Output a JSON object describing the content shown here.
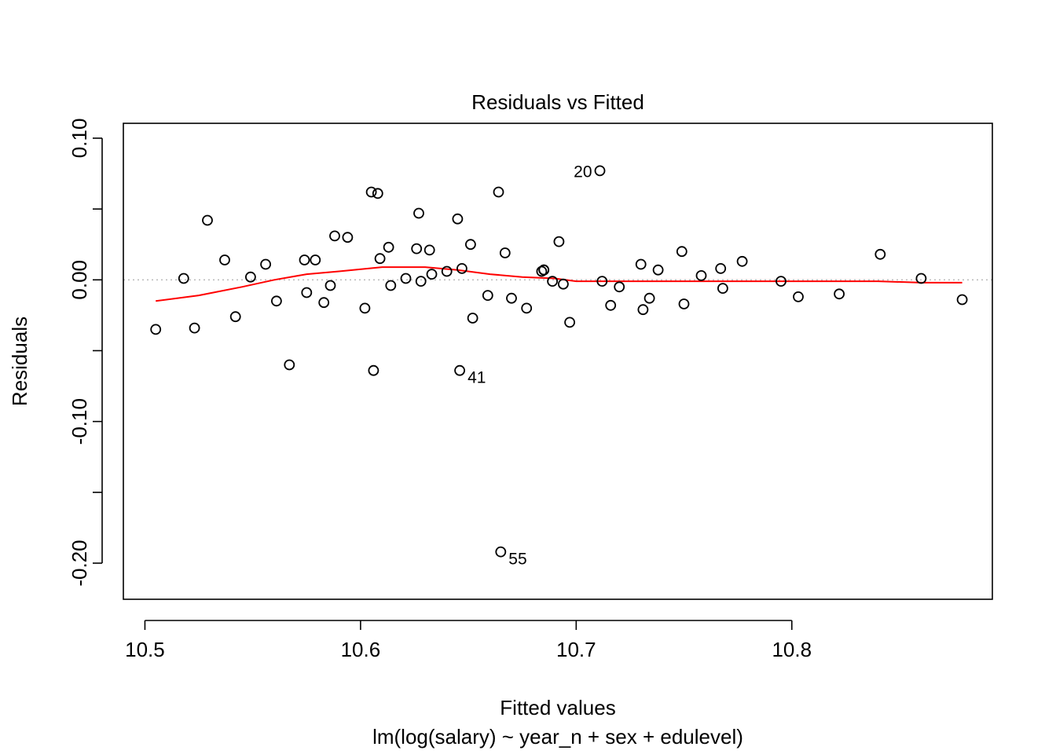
{
  "chart_data": {
    "type": "scatter",
    "title": "Residuals vs Fitted",
    "xlabel": "Fitted values",
    "subtitle": "lm(log(salary) ~ year_n + sex + edulevel)",
    "ylabel": "Residuals",
    "xlim": [
      10.49,
      10.893
    ],
    "ylim": [
      -0.2255,
      0.1105
    ],
    "x_ticks": [
      {
        "value": 10.5,
        "label": "10.5"
      },
      {
        "value": 10.6,
        "label": "10.6"
      },
      {
        "value": 10.7,
        "label": "10.7"
      },
      {
        "value": 10.8,
        "label": "10.8"
      }
    ],
    "y_ticks": [
      {
        "value": 0.1,
        "label": "0.10"
      },
      {
        "value": 0.05,
        "label": ""
      },
      {
        "value": 0.0,
        "label": "0.00"
      },
      {
        "value": -0.05,
        "label": ""
      },
      {
        "value": -0.1,
        "label": "-0.10"
      },
      {
        "value": -0.15,
        "label": ""
      },
      {
        "value": -0.2,
        "label": "-0.20"
      }
    ],
    "reference_line_y": 0,
    "grid": false,
    "colors": {
      "points": "#000000",
      "smooth": "#ff0000",
      "reference": "#bebebe"
    },
    "points": [
      {
        "x": 10.505,
        "y": -0.035
      },
      {
        "x": 10.518,
        "y": 0.001
      },
      {
        "x": 10.523,
        "y": -0.034
      },
      {
        "x": 10.529,
        "y": 0.042
      },
      {
        "x": 10.537,
        "y": 0.014
      },
      {
        "x": 10.542,
        "y": -0.026
      },
      {
        "x": 10.549,
        "y": 0.002
      },
      {
        "x": 10.556,
        "y": 0.011
      },
      {
        "x": 10.561,
        "y": -0.015
      },
      {
        "x": 10.567,
        "y": -0.06
      },
      {
        "x": 10.574,
        "y": 0.014
      },
      {
        "x": 10.575,
        "y": -0.009
      },
      {
        "x": 10.579,
        "y": 0.014
      },
      {
        "x": 10.583,
        "y": -0.016
      },
      {
        "x": 10.586,
        "y": -0.004
      },
      {
        "x": 10.588,
        "y": 0.031
      },
      {
        "x": 10.594,
        "y": 0.03
      },
      {
        "x": 10.602,
        "y": -0.02
      },
      {
        "x": 10.605,
        "y": 0.062
      },
      {
        "x": 10.606,
        "y": -0.064
      },
      {
        "x": 10.608,
        "y": 0.061
      },
      {
        "x": 10.609,
        "y": 0.015
      },
      {
        "x": 10.613,
        "y": 0.023
      },
      {
        "x": 10.614,
        "y": -0.004
      },
      {
        "x": 10.621,
        "y": 0.001
      },
      {
        "x": 10.626,
        "y": 0.022
      },
      {
        "x": 10.627,
        "y": 0.047
      },
      {
        "x": 10.628,
        "y": -0.001
      },
      {
        "x": 10.632,
        "y": 0.021
      },
      {
        "x": 10.633,
        "y": 0.004
      },
      {
        "x": 10.64,
        "y": 0.006
      },
      {
        "x": 10.645,
        "y": 0.043
      },
      {
        "x": 10.646,
        "y": -0.064
      },
      {
        "x": 10.647,
        "y": 0.008
      },
      {
        "x": 10.651,
        "y": 0.025
      },
      {
        "x": 10.652,
        "y": -0.027
      },
      {
        "x": 10.659,
        "y": -0.011
      },
      {
        "x": 10.664,
        "y": 0.062
      },
      {
        "x": 10.665,
        "y": -0.192
      },
      {
        "x": 10.667,
        "y": 0.019
      },
      {
        "x": 10.67,
        "y": -0.013
      },
      {
        "x": 10.677,
        "y": -0.02
      },
      {
        "x": 10.684,
        "y": 0.006
      },
      {
        "x": 10.685,
        "y": 0.007
      },
      {
        "x": 10.685,
        "y": 0.007
      },
      {
        "x": 10.689,
        "y": -0.001
      },
      {
        "x": 10.692,
        "y": 0.027
      },
      {
        "x": 10.694,
        "y": -0.003
      },
      {
        "x": 10.697,
        "y": -0.03
      },
      {
        "x": 10.711,
        "y": 0.077
      },
      {
        "x": 10.712,
        "y": -0.001
      },
      {
        "x": 10.716,
        "y": -0.018
      },
      {
        "x": 10.72,
        "y": -0.005
      },
      {
        "x": 10.73,
        "y": 0.011
      },
      {
        "x": 10.731,
        "y": -0.021
      },
      {
        "x": 10.734,
        "y": -0.013
      },
      {
        "x": 10.738,
        "y": 0.007
      },
      {
        "x": 10.749,
        "y": 0.02
      },
      {
        "x": 10.75,
        "y": -0.017
      },
      {
        "x": 10.758,
        "y": 0.003
      },
      {
        "x": 10.767,
        "y": 0.008
      },
      {
        "x": 10.768,
        "y": -0.006
      },
      {
        "x": 10.777,
        "y": 0.013
      },
      {
        "x": 10.795,
        "y": -0.001
      },
      {
        "x": 10.803,
        "y": -0.012
      },
      {
        "x": 10.822,
        "y": -0.01
      },
      {
        "x": 10.841,
        "y": 0.018
      },
      {
        "x": 10.86,
        "y": 0.001
      },
      {
        "x": 10.879,
        "y": -0.014
      }
    ],
    "smooth_line": [
      {
        "x": 10.505,
        "y": -0.015
      },
      {
        "x": 10.525,
        "y": -0.011
      },
      {
        "x": 10.545,
        "y": -0.005
      },
      {
        "x": 10.56,
        "y": 0.0
      },
      {
        "x": 10.575,
        "y": 0.004
      },
      {
        "x": 10.59,
        "y": 0.006
      },
      {
        "x": 10.61,
        "y": 0.009
      },
      {
        "x": 10.63,
        "y": 0.009
      },
      {
        "x": 10.645,
        "y": 0.007
      },
      {
        "x": 10.66,
        "y": 0.004
      },
      {
        "x": 10.675,
        "y": 0.002
      },
      {
        "x": 10.69,
        "y": 0.001
      },
      {
        "x": 10.7,
        "y": -0.001
      },
      {
        "x": 10.72,
        "y": -0.001
      },
      {
        "x": 10.76,
        "y": -0.001
      },
      {
        "x": 10.8,
        "y": -0.001
      },
      {
        "x": 10.84,
        "y": -0.001
      },
      {
        "x": 10.86,
        "y": -0.002
      },
      {
        "x": 10.879,
        "y": -0.002
      }
    ],
    "annotations": [
      {
        "label": "20",
        "x": 10.711,
        "y": 0.077,
        "side": "left"
      },
      {
        "label": "41",
        "x": 10.646,
        "y": -0.064,
        "side": "right"
      },
      {
        "label": "55",
        "x": 10.665,
        "y": -0.192,
        "side": "right"
      }
    ]
  }
}
